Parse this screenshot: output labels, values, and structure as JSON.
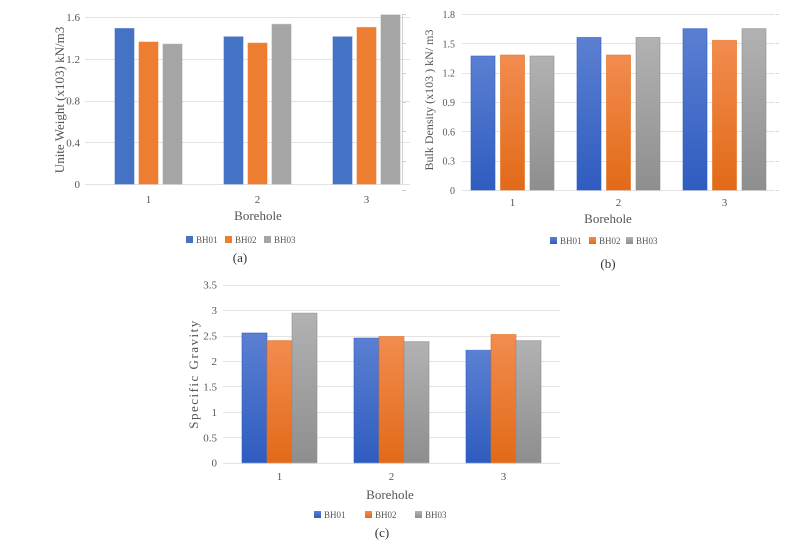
{
  "colors": {
    "BH01": "#4472c4",
    "BH02": "#ed7d31",
    "BH03": "#a5a5a5",
    "BH01_light": "#5b80d2",
    "BH01_dark": "#2f5cc0",
    "BH02_light": "#f28c4f",
    "BH02_dark": "#e26a18",
    "BH03_light": "#b2b2b2",
    "BH03_dark": "#8e8e8e"
  },
  "chart_data": [
    {
      "id": "a",
      "type": "bar",
      "caption": "(a)",
      "title": "",
      "xlabel": "Borehole",
      "ylabel": "Unite Weight (x103) kN/m3",
      "categories": [
        "1",
        "2",
        "3"
      ],
      "ylim": [
        0,
        1.6
      ],
      "yticks": [
        "0",
        "0.4",
        "0.8",
        "1.2",
        "1.6"
      ],
      "ytick_values": [
        0,
        0.4,
        0.8,
        1.2,
        1.6
      ],
      "grid": true,
      "legend": "bottom",
      "series": [
        {
          "name": "BH01",
          "values": [
            1.49,
            1.41,
            1.41
          ]
        },
        {
          "name": "BH02",
          "values": [
            1.36,
            1.35,
            1.5
          ]
        },
        {
          "name": "BH03",
          "values": [
            1.34,
            1.53,
            1.62
          ]
        }
      ]
    },
    {
      "id": "b",
      "type": "bar",
      "caption": "(b)",
      "title": "",
      "xlabel": "Borehole",
      "ylabel": "Bulk Density (x103 ) kN/ m3",
      "categories": [
        "1",
        "2",
        "3"
      ],
      "ylim": [
        0,
        1.8
      ],
      "yticks": [
        "0",
        "0.3",
        "0.6",
        "0.9",
        "1.2",
        "1.5",
        "1.8"
      ],
      "ytick_values": [
        0,
        0.3,
        0.6,
        0.9,
        1.2,
        1.5,
        1.8
      ],
      "grid": true,
      "legend": "bottom",
      "series": [
        {
          "name": "BH01",
          "values": [
            1.37,
            1.56,
            1.65
          ]
        },
        {
          "name": "BH02",
          "values": [
            1.38,
            1.38,
            1.53
          ]
        },
        {
          "name": "BH03",
          "values": [
            1.37,
            1.56,
            1.65
          ]
        }
      ]
    },
    {
      "id": "c",
      "type": "bar",
      "caption": "(c)",
      "title": "",
      "xlabel": "Borehole",
      "ylabel": "Specific Gravity",
      "categories": [
        "1",
        "2",
        "3"
      ],
      "ylim": [
        0,
        3.5
      ],
      "yticks": [
        "0",
        "0.5",
        "1",
        "1.5",
        "2",
        "2.5",
        "3",
        "3.5"
      ],
      "ytick_values": [
        0,
        0.5,
        1,
        1.5,
        2,
        2.5,
        3,
        3.5
      ],
      "grid": true,
      "legend": "bottom",
      "series": [
        {
          "name": "BH01",
          "values": [
            2.55,
            2.45,
            2.21
          ]
        },
        {
          "name": "BH02",
          "values": [
            2.4,
            2.48,
            2.52
          ]
        },
        {
          "name": "BH03",
          "values": [
            2.94,
            2.38,
            2.4
          ]
        }
      ]
    }
  ]
}
